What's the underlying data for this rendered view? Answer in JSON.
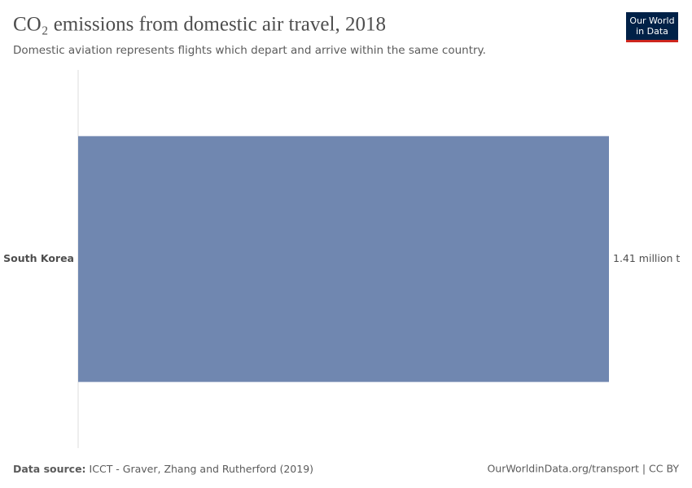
{
  "chart_data": {
    "type": "hbar",
    "title": "CO₂ emissions from domestic air travel, 2018",
    "subtitle": "Domestic aviation represents flights which depart and arrive within the same country.",
    "categories": [
      "South Korea"
    ],
    "values": [
      1.41
    ],
    "value_labels": [
      "1.41 million t"
    ],
    "color": "#7087b0",
    "source_label": "Data source:",
    "source": "ICCT - Graver, Zhang and Rutherford (2019)",
    "footer_right": "OurWorldinData.org/transport | CC BY"
  },
  "logo": [
    "Our World",
    "in Data"
  ]
}
